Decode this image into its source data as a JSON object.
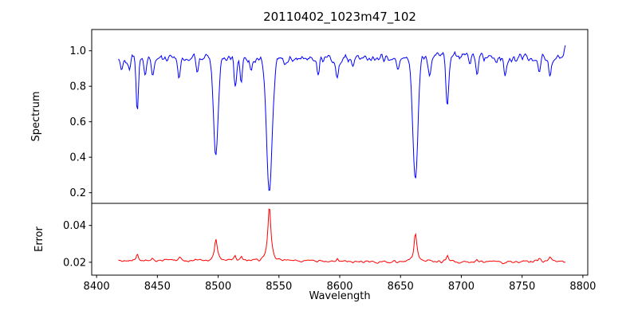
{
  "figure": {
    "background": "#ffffff",
    "frame_color": "#000000"
  },
  "chart_data": [
    {
      "type": "line",
      "panel": "spectrum",
      "title": "20110402_1023m47_102",
      "xlabel": "Wavelength",
      "ylabel": "Spectrum",
      "line_color": "#0000ff",
      "grid": false,
      "legend": null,
      "xlim": [
        8396,
        8804
      ],
      "ylim": [
        0.14,
        1.12
      ],
      "xticks": [
        8400,
        8450,
        8500,
        8550,
        8600,
        8650,
        8700,
        8750,
        8800
      ],
      "xtick_labels": [
        "8400",
        "8450",
        "8500",
        "8550",
        "8600",
        "8650",
        "8700",
        "8750",
        "8800"
      ],
      "yticks": [
        0.2,
        0.4,
        0.6,
        0.8,
        1.0
      ],
      "ytick_labels": [
        "0.2",
        "0.4",
        "0.6",
        "0.8",
        "1.0"
      ],
      "x_start": 8418,
      "x_end": 8786,
      "step": 0.75,
      "continuum": 0.96,
      "continuum_wiggle": [
        0.008,
        0.006
      ],
      "noise_sigma": 0.02,
      "noise_seed": 42,
      "absorption_lines": [
        {
          "center": 8421.0,
          "depth": 0.07,
          "width": 1.0
        },
        {
          "center": 8427.0,
          "depth": 0.1,
          "width": 1.1
        },
        {
          "center": 8433.5,
          "depth": 0.3,
          "width": 1.0
        },
        {
          "center": 8440.0,
          "depth": 0.12,
          "width": 1.0
        },
        {
          "center": 8446.0,
          "depth": 0.13,
          "width": 1.0
        },
        {
          "center": 8468.0,
          "depth": 0.13,
          "width": 1.2
        },
        {
          "center": 8483.0,
          "depth": 0.09,
          "width": 1.0
        },
        {
          "center": 8498.1,
          "depth": 0.565,
          "width": 1.9
        },
        {
          "center": 8514.0,
          "depth": 0.17,
          "width": 1.1
        },
        {
          "center": 8519.0,
          "depth": 0.15,
          "width": 1.0
        },
        {
          "center": 8527.0,
          "depth": 0.08,
          "width": 1.0
        },
        {
          "center": 8542.1,
          "depth": 0.75,
          "width": 2.3
        },
        {
          "center": 8582.0,
          "depth": 0.09,
          "width": 1.0
        },
        {
          "center": 8598.0,
          "depth": 0.1,
          "width": 1.1
        },
        {
          "center": 8611.0,
          "depth": 0.06,
          "width": 1.0
        },
        {
          "center": 8648.0,
          "depth": 0.06,
          "width": 1.0
        },
        {
          "center": 8662.2,
          "depth": 0.7,
          "width": 2.0
        },
        {
          "center": 8674.0,
          "depth": 0.11,
          "width": 1.1
        },
        {
          "center": 8688.5,
          "depth": 0.27,
          "width": 1.1
        },
        {
          "center": 8713.0,
          "depth": 0.09,
          "width": 1.0
        },
        {
          "center": 8736.0,
          "depth": 0.08,
          "width": 1.0
        },
        {
          "center": 8764.0,
          "depth": 0.09,
          "width": 1.0
        },
        {
          "center": 8773.0,
          "depth": 0.11,
          "width": 1.0
        },
        {
          "center": 8786.0,
          "depth": -0.1,
          "width": 1.5
        }
      ]
    },
    {
      "type": "line",
      "panel": "error",
      "ylabel": "Error",
      "line_color": "#ff0000",
      "grid": false,
      "legend": null,
      "ylim": [
        0.013,
        0.052
      ],
      "yticks": [
        0.02,
        0.04
      ],
      "ytick_labels": [
        "0.02",
        "0.04"
      ],
      "baseline": 0.0205,
      "noise_sigma": 0.0006,
      "noise_seed": 9,
      "peaks": [
        {
          "center": 8433.5,
          "amp": 0.0035,
          "width": 1.0
        },
        {
          "center": 8446.0,
          "amp": 0.0015,
          "width": 1.0
        },
        {
          "center": 8468.0,
          "amp": 0.0015,
          "width": 1.0
        },
        {
          "center": 8498.1,
          "amp": 0.0115,
          "width": 1.3
        },
        {
          "center": 8514.0,
          "amp": 0.0025,
          "width": 1.0
        },
        {
          "center": 8519.0,
          "amp": 0.002,
          "width": 1.0
        },
        {
          "center": 8542.1,
          "amp": 0.0295,
          "width": 1.5
        },
        {
          "center": 8598.0,
          "amp": 0.0013,
          "width": 1.0
        },
        {
          "center": 8662.2,
          "amp": 0.0165,
          "width": 1.4
        },
        {
          "center": 8674.0,
          "amp": 0.0015,
          "width": 1.0
        },
        {
          "center": 8688.5,
          "amp": 0.0035,
          "width": 1.0
        },
        {
          "center": 8713.0,
          "amp": 0.0013,
          "width": 1.0
        },
        {
          "center": 8764.0,
          "amp": 0.0018,
          "width": 1.0
        },
        {
          "center": 8773.0,
          "amp": 0.002,
          "width": 1.0
        }
      ]
    }
  ]
}
